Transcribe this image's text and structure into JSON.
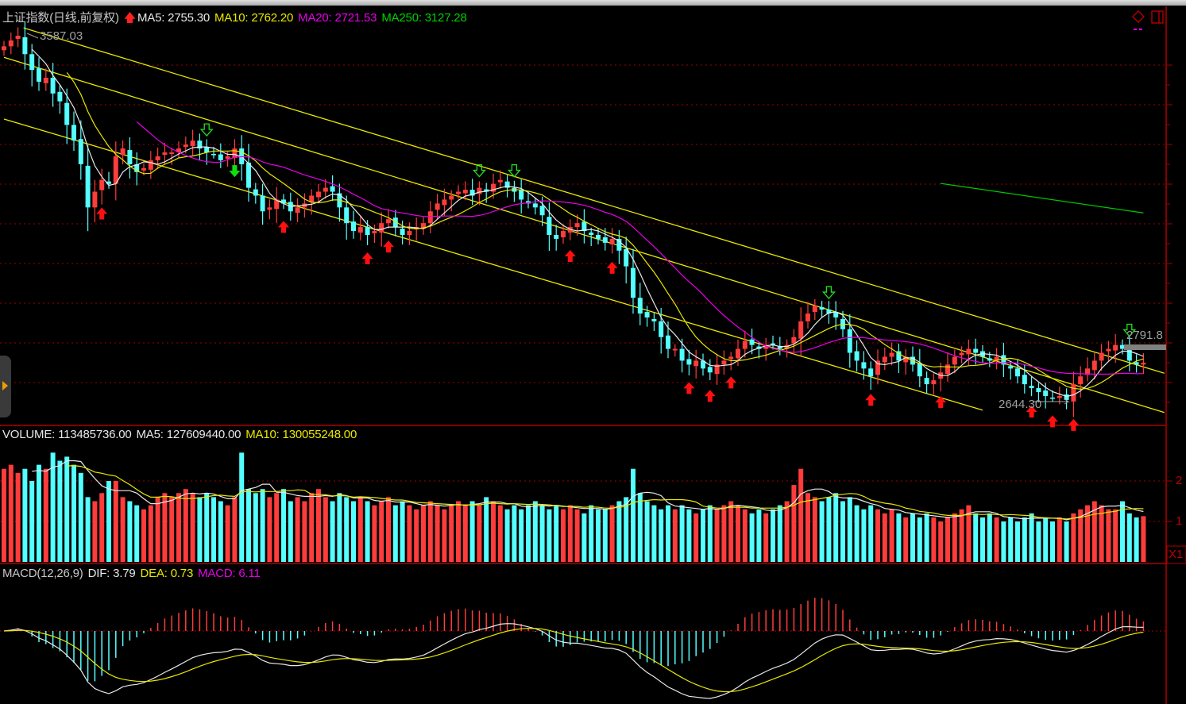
{
  "header": {
    "title": "上证指数(日线,前复权)",
    "ma5": "MA5: 2755.30",
    "ma10": "MA10: 2762.20",
    "ma20": "MA20: 2721.53",
    "ma250": "MA250: 3127.28"
  },
  "volume_header": {
    "volume": "VOLUME: 113485736.00",
    "ma5": "MA5: 127609440.00",
    "ma10": "MA10: 130055248.00"
  },
  "macd_header": {
    "name": "MACD(12,26,9)",
    "dif": "DIF: 3.79",
    "dea": "DEA: 0.73",
    "macd": "MACD: 6.11"
  },
  "annotations": {
    "high_label": "3587.03",
    "low_label": "2644.30",
    "right_label": "2791.8",
    "volume_axis": [
      "2",
      "1"
    ],
    "volume_unit": "X1"
  },
  "colors": {
    "up": "#ff3c3c",
    "down": "#54ffff",
    "ma5": "#e8e8e8",
    "ma10": "#e8e800",
    "ma20": "#e800e8",
    "ma250": "#00c800",
    "trendline": "#e8e800",
    "grid": "#a00000"
  },
  "chart_data": {
    "type": "candlestick",
    "price_closes": [
      3560,
      3575,
      3587,
      3540,
      3500,
      3470,
      3480,
      3440,
      3420,
      3360,
      3320,
      3260,
      3150,
      3190,
      3220,
      3210,
      3280,
      3300,
      3260,
      3240,
      3250,
      3270,
      3280,
      3290,
      3290,
      3300,
      3310,
      3320,
      3300,
      3290,
      3285,
      3270,
      3280,
      3300,
      3260,
      3200,
      3180,
      3140,
      3150,
      3170,
      3160,
      3140,
      3150,
      3160,
      3180,
      3190,
      3200,
      3190,
      3150,
      3110,
      3090,
      3100,
      3080,
      3090,
      3110,
      3120,
      3100,
      3080,
      3090,
      3100,
      3110,
      3140,
      3160,
      3170,
      3180,
      3190,
      3195,
      3180,
      3200,
      3190,
      3210,
      3220,
      3200,
      3190,
      3170,
      3160,
      3150,
      3130,
      3080,
      3070,
      3090,
      3100,
      3110,
      3090,
      3080,
      3070,
      3060,
      3070,
      3040,
      3000,
      2920,
      2880,
      2870,
      2860,
      2820,
      2790,
      2790,
      2760,
      2750,
      2760,
      2740,
      2730,
      2750,
      2760,
      2770,
      2790,
      2810,
      2800,
      2790,
      2800,
      2800,
      2790,
      2800,
      2820,
      2860,
      2880,
      2900,
      2890,
      2880,
      2870,
      2840,
      2780,
      2760,
      2740,
      2720,
      2760,
      2770,
      2780,
      2760,
      2770,
      2750,
      2720,
      2700,
      2710,
      2730,
      2750,
      2770,
      2780,
      2790,
      2780,
      2770,
      2760,
      2770,
      2750,
      2740,
      2720,
      2700,
      2690,
      2680,
      2670,
      2665,
      2670,
      2660,
      2700,
      2720,
      2740,
      2760,
      2780,
      2790,
      2800,
      2790,
      2760,
      2750,
      2755
    ],
    "volumes_1e8": [
      2.3,
      2.4,
      2.2,
      2.3,
      2.0,
      2.4,
      2.3,
      2.7,
      2.5,
      2.6,
      2.4,
      2.2,
      1.6,
      1.5,
      1.7,
      2.0,
      2.0,
      1.6,
      1.5,
      1.4,
      1.3,
      1.4,
      1.6,
      1.7,
      1.6,
      1.7,
      1.8,
      1.7,
      1.6,
      1.7,
      1.6,
      1.5,
      1.4,
      1.6,
      2.7,
      1.8,
      1.7,
      1.8,
      1.6,
      1.7,
      1.8,
      1.5,
      1.6,
      1.5,
      1.7,
      1.8,
      1.6,
      1.5,
      1.7,
      1.6,
      1.5,
      1.6,
      1.5,
      1.4,
      1.5,
      1.6,
      1.4,
      1.5,
      1.4,
      1.3,
      1.4,
      1.5,
      1.4,
      1.3,
      1.4,
      1.5,
      1.4,
      1.5,
      1.4,
      1.6,
      1.5,
      1.4,
      1.3,
      1.4,
      1.3,
      1.4,
      1.5,
      1.4,
      1.3,
      1.4,
      1.3,
      1.4,
      1.3,
      1.2,
      1.4,
      1.3,
      1.3,
      1.4,
      1.5,
      1.6,
      2.3,
      1.7,
      1.5,
      1.4,
      1.3,
      1.4,
      1.3,
      1.4,
      1.3,
      1.2,
      1.3,
      1.4,
      1.3,
      1.4,
      1.5,
      1.4,
      1.3,
      1.2,
      1.3,
      1.2,
      1.3,
      1.4,
      1.5,
      1.9,
      2.3,
      1.7,
      1.6,
      1.5,
      1.6,
      1.7,
      1.5,
      1.6,
      1.4,
      1.3,
      1.4,
      1.3,
      1.2,
      1.3,
      1.2,
      1.1,
      1.2,
      1.1,
      1.2,
      1.1,
      1.0,
      1.1,
      1.2,
      1.3,
      1.4,
      1.2,
      1.1,
      1.2,
      1.1,
      1.0,
      1.1,
      1.0,
      1.1,
      1.2,
      1.0,
      1.1,
      1.0,
      1.1,
      1.0,
      1.2,
      1.3,
      1.4,
      1.5,
      1.4,
      1.3,
      1.3,
      1.5,
      1.2,
      1.1,
      1.13
    ],
    "ma250_segment": [
      [
        134,
        3211
      ],
      [
        163,
        3136
      ]
    ],
    "trendlines": [
      [
        [
          2.8,
          3607
        ],
        [
          166,
          2728
        ]
      ],
      [
        [
          0,
          3532
        ],
        [
          166,
          2628
        ]
      ],
      [
        [
          0,
          3375
        ],
        [
          140,
          2634
        ]
      ]
    ],
    "buy_signals": [
      14,
      40,
      52,
      55,
      81,
      87,
      98,
      101,
      104,
      124,
      134,
      147,
      150,
      153
    ],
    "sell_signals_hollow": [
      29,
      68,
      73,
      118,
      161
    ],
    "sell_signals_filled": [
      33
    ],
    "high": 3587.03,
    "low": 2644.3
  }
}
